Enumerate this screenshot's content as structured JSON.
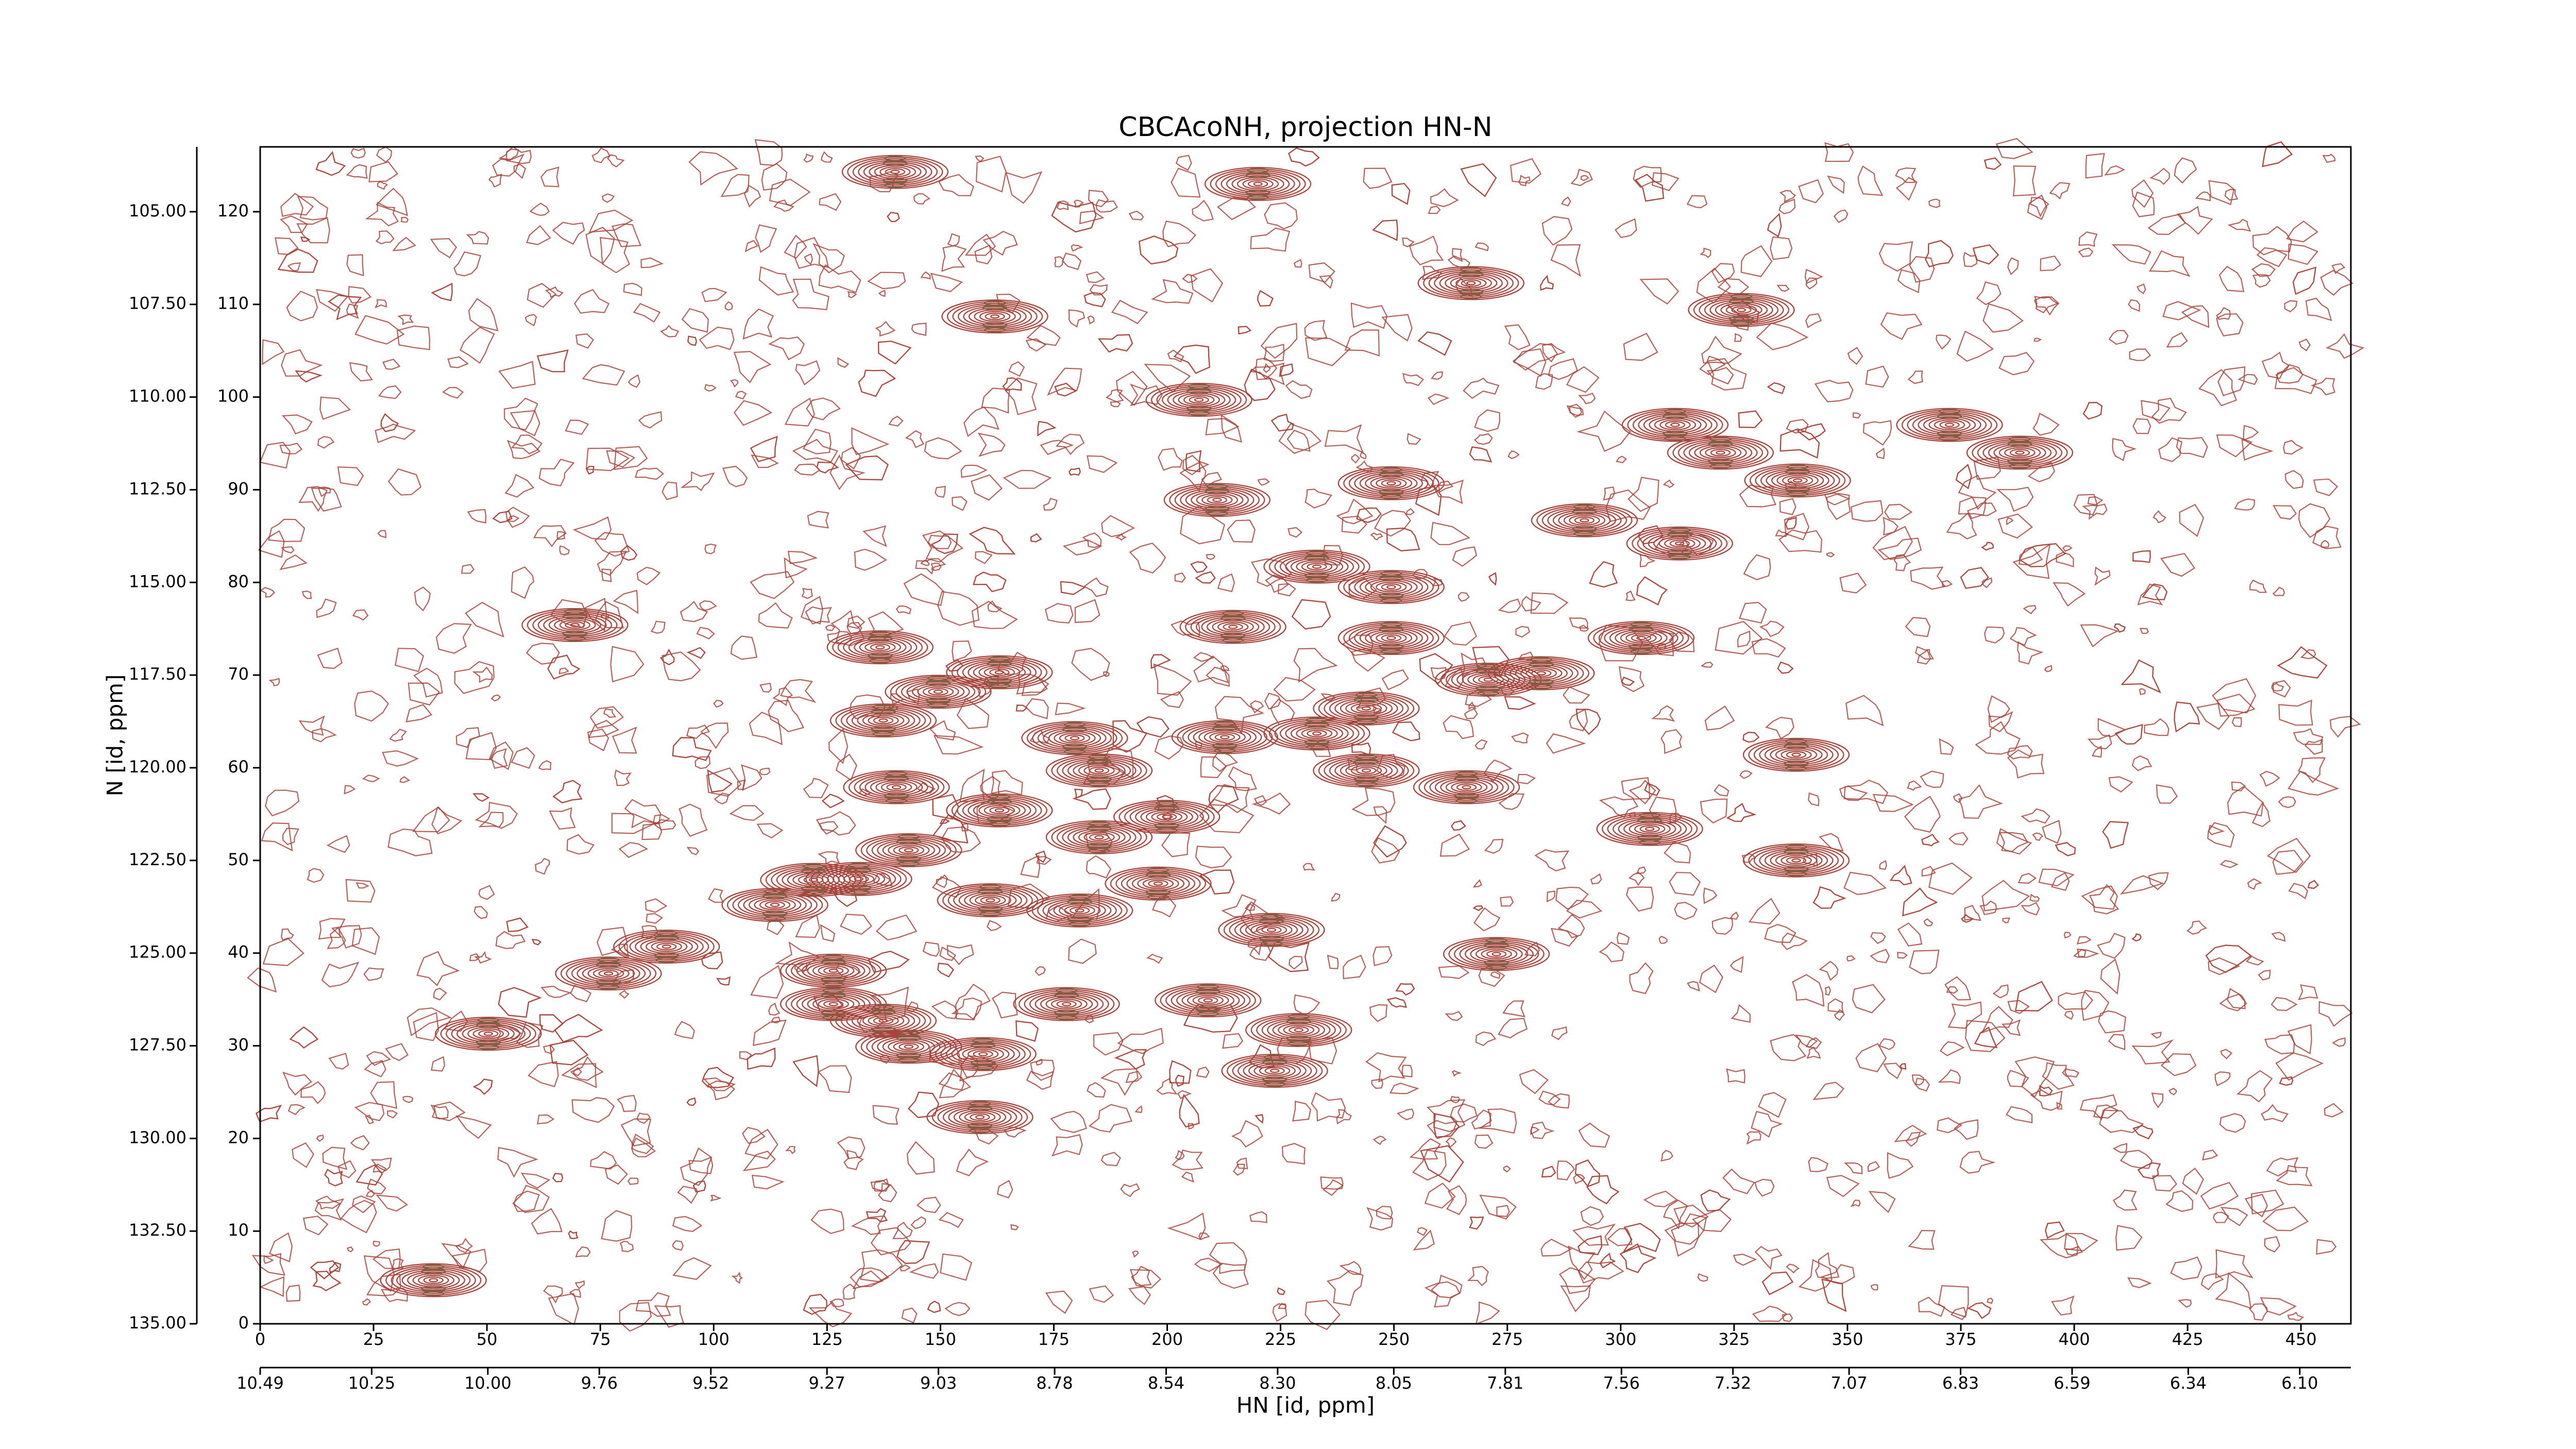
{
  "chart_data": {
    "type": "contour",
    "title": "CBCAcoNH, projection HN-N",
    "x_label": "HN [id, ppm]",
    "y_label": "N [id, ppm]",
    "color": "#a8443c",
    "negative_color": "#2f9a55",
    "xlim": [
      0,
      461
    ],
    "ylim": [
      0,
      127
    ],
    "xticks": [
      0,
      25,
      50,
      75,
      100,
      125,
      150,
      175,
      200,
      225,
      250,
      275,
      300,
      325,
      350,
      375,
      400,
      425,
      450
    ],
    "yticks": [
      0,
      10,
      20,
      30,
      40,
      50,
      60,
      70,
      80,
      90,
      100,
      110,
      120
    ],
    "x2lim": [
      10.49,
      5.99
    ],
    "x2ticks": [
      10.49,
      10.25,
      {
        "value": 10,
        "label": "10.00"
      },
      9.76,
      9.52,
      9.27,
      9.03,
      8.78,
      8.54,
      {
        "value": 8.3,
        "label": "8.30"
      },
      8.05,
      7.81,
      7.56,
      7.32,
      7.07,
      6.83,
      6.59,
      6.34,
      {
        "value": 6.1,
        "label": "6.10"
      }
    ],
    "y2lim": [
      135,
      103.25
    ],
    "y2ticks": [
      {
        "value": 105,
        "label": "105.00"
      },
      {
        "value": 107.5,
        "label": "107.50"
      },
      {
        "value": 110,
        "label": "110.00"
      },
      {
        "value": 112.5,
        "label": "112.50"
      },
      {
        "value": 115,
        "label": "115.00"
      },
      {
        "value": 117.5,
        "label": "117.50"
      },
      {
        "value": 120,
        "label": "120.00"
      },
      {
        "value": 122.5,
        "label": "122.50"
      },
      {
        "value": 125,
        "label": "125.00"
      },
      {
        "value": 127.5,
        "label": "127.50"
      },
      {
        "value": 130,
        "label": "130.00"
      },
      {
        "value": 132.5,
        "label": "132.50"
      },
      {
        "value": 135,
        "label": "135.00"
      }
    ],
    "x": [
      140,
      220,
      267,
      326.6,
      162,
      207,
      312,
      372.5,
      388,
      322,
      339,
      249.4,
      211,
      292,
      313,
      233,
      249.4,
      69.4,
      214.5,
      304.5,
      249.4,
      136.7,
      163,
      149.5,
      270.8,
      282.5,
      243.9,
      137.4,
      179.6,
      212.7,
      233,
      338.7,
      185,
      243.9,
      266,
      140.3,
      163,
      199.9,
      306.4,
      185,
      143,
      338.7,
      198,
      132,
      122,
      161,
      180.7,
      113.5,
      223,
      89.6,
      76.8,
      272.6,
      126.4,
      126.4,
      177.8,
      209,
      137.4,
      229,
      50.3,
      143,
      159.4,
      223.7,
      158.7,
      38.2
    ],
    "y": [
      124.3,
      123,
      112.3,
      109.4,
      108.7,
      99.7,
      97,
      97,
      94,
      94,
      91,
      90.7,
      88.9,
      86.7,
      84.2,
      81.7,
      79.5,
      75.4,
      75.2,
      74,
      74,
      73,
      70.3,
      68.2,
      69.5,
      70.2,
      66.4,
      65.1,
      63.2,
      63.3,
      63.7,
      61.4,
      59.7,
      59.7,
      57.9,
      57.9,
      55.4,
      54.7,
      53.4,
      52.5,
      51.1,
      50,
      47.5,
      48,
      47.9,
      45.7,
      44.6,
      45.2,
      42.5,
      40.7,
      37.8,
      39.9,
      38.1,
      34.5,
      34.5,
      34.9,
      32.7,
      31.7,
      31.3,
      29.9,
      29.1,
      27.3,
      22.3,
      4.7
    ]
  }
}
